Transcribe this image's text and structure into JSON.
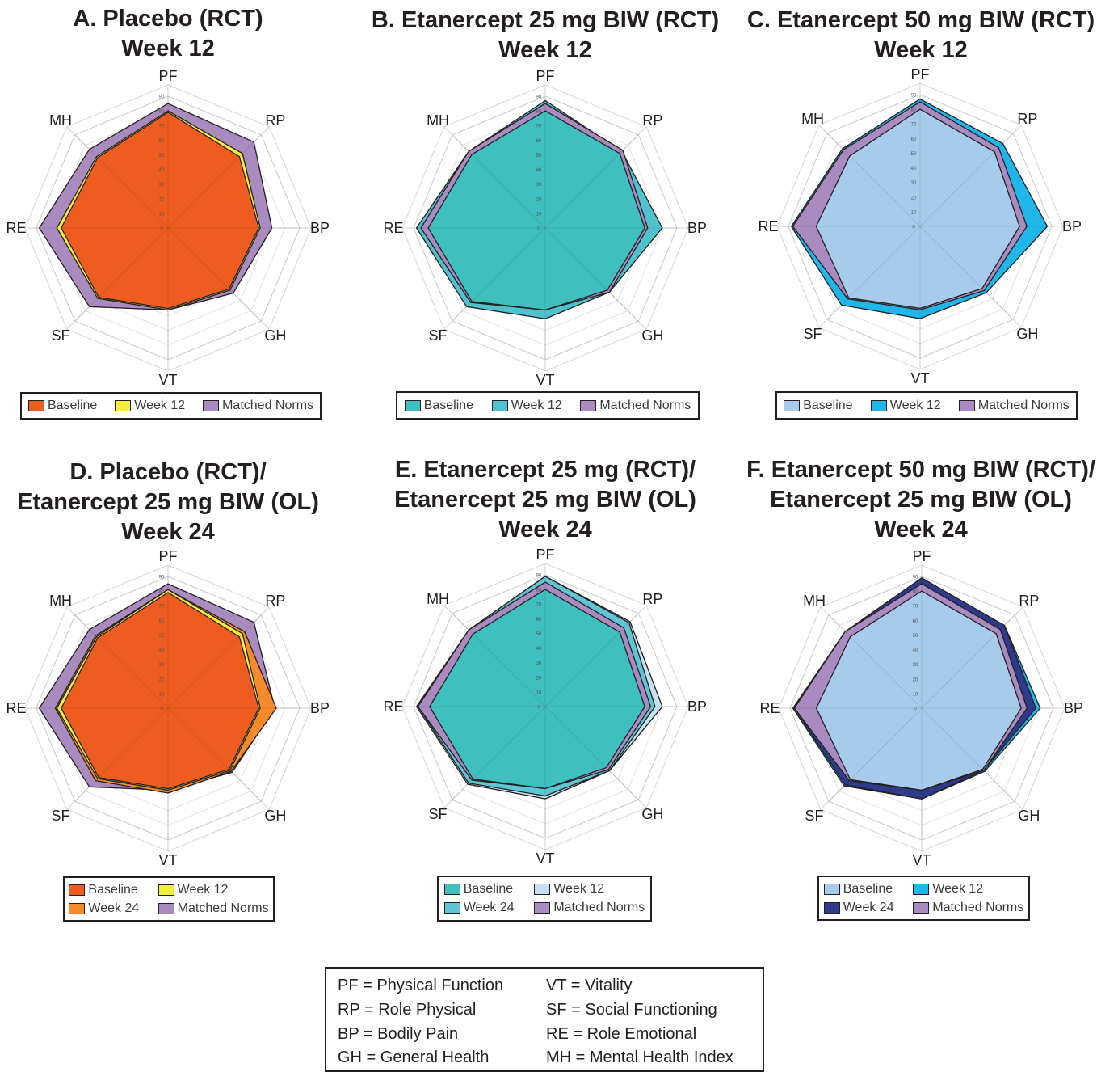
{
  "chart_data": [
    {
      "type": "radar",
      "title_lines": [
        "A. Placebo (RCT)",
        "Week 12"
      ],
      "axes": [
        "PF",
        "RP",
        "BP",
        "GH",
        "VT",
        "SF",
        "RE",
        "MH"
      ],
      "rlim": [
        0,
        90
      ],
      "ticks": [
        "0",
        "10",
        "20",
        "30",
        "40",
        "50",
        "60",
        "70",
        "80",
        "90"
      ],
      "series": [
        {
          "name": "Matched Norms",
          "color": "#a98bc0",
          "values": [
            85,
            83,
            71,
            63,
            56,
            76,
            88,
            76
          ]
        },
        {
          "name": "Week 12",
          "color": "#f6ef3a",
          "values": [
            80,
            72,
            63,
            60,
            56,
            68,
            76,
            69
          ]
        },
        {
          "name": "Baseline",
          "color": "#ee5d1f",
          "values": [
            79,
            69,
            62,
            59,
            55,
            67,
            73,
            68
          ]
        }
      ],
      "legend": [
        {
          "label": "Baseline",
          "color": "#ee5d1f"
        },
        {
          "label": "Week 12",
          "color": "#f6ef3a"
        },
        {
          "label": "Matched Norms",
          "color": "#a98bc0"
        }
      ]
    },
    {
      "type": "radar",
      "title_lines": [
        "B. Etanercept 25 mg BIW (RCT)",
        "Week 12"
      ],
      "axes": [
        "PF",
        "RP",
        "BP",
        "GH",
        "VT",
        "SF",
        "RE",
        "MH"
      ],
      "rlim": [
        0,
        90
      ],
      "ticks": [
        "0",
        "10",
        "20",
        "30",
        "40",
        "50",
        "60",
        "70",
        "80",
        "90"
      ],
      "series": [
        {
          "name": "Week 12",
          "color": "#4fc3cd",
          "values": [
            87,
            74,
            80,
            62,
            62,
            76,
            88,
            74
          ]
        },
        {
          "name": "Matched Norms",
          "color": "#a98bc0",
          "values": [
            85,
            75,
            70,
            62,
            56,
            72,
            85,
            74
          ]
        },
        {
          "name": "Baseline",
          "color": "#3fbfbd",
          "values": [
            80,
            72,
            68,
            60,
            56,
            71,
            80,
            71
          ]
        }
      ],
      "legend": [
        {
          "label": "Baseline",
          "color": "#3fbfbd"
        },
        {
          "label": "Week 12",
          "color": "#4fc3cd"
        },
        {
          "label": "Matched Norms",
          "color": "#a98bc0"
        }
      ]
    },
    {
      "type": "radar",
      "title_lines": [
        "C. Etanercept 50 mg BIW (RCT)",
        "Week 12"
      ],
      "axes": [
        "PF",
        "RP",
        "BP",
        "GH",
        "VT",
        "SF",
        "RE",
        "MH"
      ],
      "rlim": [
        0,
        90
      ],
      "ticks": [
        "0",
        "10",
        "20",
        "30",
        "40",
        "50",
        "60",
        "70",
        "80",
        "90"
      ],
      "series": [
        {
          "name": "Week 12",
          "color": "#1fb6ea",
          "values": [
            87,
            80,
            87,
            64,
            63,
            76,
            88,
            75
          ]
        },
        {
          "name": "Matched Norms",
          "color": "#a98bc0",
          "values": [
            85,
            76,
            73,
            62,
            57,
            70,
            87,
            74
          ]
        },
        {
          "name": "Baseline",
          "color": "#a6cbeb",
          "values": [
            80,
            72,
            68,
            60,
            56,
            69,
            71,
            68
          ]
        }
      ],
      "legend": [
        {
          "label": "Baseline",
          "color": "#a6cbeb"
        },
        {
          "label": "Week 12",
          "color": "#1fb6ea"
        },
        {
          "label": "Matched Norms",
          "color": "#a98bc0"
        }
      ]
    },
    {
      "type": "radar",
      "title_lines": [
        "D. Placebo (RCT)/",
        "Etanercept 25 mg BIW (OL)",
        "Week 24"
      ],
      "axes": [
        "PF",
        "RP",
        "BP",
        "GH",
        "VT",
        "SF",
        "RE",
        "MH"
      ],
      "rlim": [
        0,
        90
      ],
      "ticks": [
        "0",
        "10",
        "20",
        "30",
        "40",
        "50",
        "60",
        "70",
        "80",
        "90"
      ],
      "series": [
        {
          "name": "Matched Norms",
          "color": "#a98bc0",
          "values": [
            85,
            83,
            73,
            62,
            56,
            76,
            88,
            76
          ]
        },
        {
          "name": "Week 24",
          "color": "#f58a2a",
          "values": [
            81,
            74,
            74,
            61,
            58,
            70,
            77,
            70
          ]
        },
        {
          "name": "Week 12",
          "color": "#f6ef3a",
          "values": [
            81,
            72,
            63,
            60,
            56,
            68,
            76,
            69
          ]
        },
        {
          "name": "Baseline",
          "color": "#ee5d1f",
          "values": [
            79,
            69,
            62,
            59,
            55,
            67,
            73,
            68
          ]
        }
      ],
      "legend": [
        {
          "label": "Baseline",
          "color": "#ee5d1f"
        },
        {
          "label": "Week 12",
          "color": "#f6ef3a"
        },
        {
          "label": "Week 24",
          "color": "#f58a2a"
        },
        {
          "label": "Matched Norms",
          "color": "#a98bc0"
        }
      ]
    },
    {
      "type": "radar",
      "title_lines": [
        "E. Etanercept 25 mg (RCT)/",
        "Etanercept 25 mg BIW (OL)",
        "Week 24"
      ],
      "axes": [
        "PF",
        "RP",
        "BP",
        "GH",
        "VT",
        "SF",
        "RE",
        "MH"
      ],
      "rlim": [
        0,
        90
      ],
      "ticks": [
        "0",
        "10",
        "20",
        "30",
        "40",
        "50",
        "60",
        "70",
        "80",
        "90"
      ],
      "series": [
        {
          "name": "Week 12",
          "color": "#c6e2f0",
          "values": [
            89,
            82,
            80,
            62,
            63,
            75,
            88,
            74
          ]
        },
        {
          "name": "Week 24",
          "color": "#5fc6d4",
          "values": [
            89,
            81,
            75,
            62,
            61,
            74,
            87,
            74
          ]
        },
        {
          "name": "Matched Norms",
          "color": "#a98bc0",
          "values": [
            85,
            76,
            72,
            61,
            56,
            71,
            87,
            74
          ]
        },
        {
          "name": "Baseline",
          "color": "#3fbfbd",
          "values": [
            80,
            72,
            68,
            59,
            56,
            70,
            79,
            70
          ]
        }
      ],
      "legend": [
        {
          "label": "Baseline",
          "color": "#3fbfbd"
        },
        {
          "label": "Week 12",
          "color": "#c6e2f0"
        },
        {
          "label": "Week 24",
          "color": "#5fc6d4"
        },
        {
          "label": "Matched Norms",
          "color": "#a98bc0"
        }
      ]
    },
    {
      "type": "radar",
      "title_lines": [
        "F. Etanercept 50 mg BIW  (RCT)/",
        "Etanercept 25 mg BIW (OL)",
        "Week 24"
      ],
      "axes": [
        "PF",
        "RP",
        "BP",
        "GH",
        "VT",
        "SF",
        "RE",
        "MH"
      ],
      "rlim": [
        0,
        90
      ],
      "ticks": [
        "0",
        "10",
        "20",
        "30",
        "40",
        "50",
        "60",
        "70",
        "80",
        "90"
      ],
      "series": [
        {
          "name": "Week 12",
          "color": "#1fb6ea",
          "values": [
            88,
            80,
            81,
            61,
            62,
            75,
            88,
            74
          ]
        },
        {
          "name": "Week 24",
          "color": "#2e3a8c",
          "values": [
            89,
            80,
            78,
            60,
            62,
            74,
            87,
            74
          ]
        },
        {
          "name": "Matched Norms",
          "color": "#a98bc0",
          "values": [
            85,
            76,
            72,
            60,
            56,
            70,
            87,
            74
          ]
        },
        {
          "name": "Baseline",
          "color": "#a6cbeb",
          "values": [
            80,
            72,
            68,
            59,
            56,
            69,
            72,
            69
          ]
        }
      ],
      "legend": [
        {
          "label": "Baseline",
          "color": "#a6cbeb"
        },
        {
          "label": "Week 12",
          "color": "#1fb6ea"
        },
        {
          "label": "Week 24",
          "color": "#2e3a8c"
        },
        {
          "label": "Matched Norms",
          "color": "#a98bc0"
        }
      ]
    }
  ],
  "abbreviations": [
    "PF = Physical Function",
    "VT = Vitality",
    "RP = Role Physical",
    "SF = Social Functioning",
    "BP = Bodily Pain",
    "RE = Role Emotional",
    "GH = General Health",
    "MH = Mental Health Index"
  ]
}
